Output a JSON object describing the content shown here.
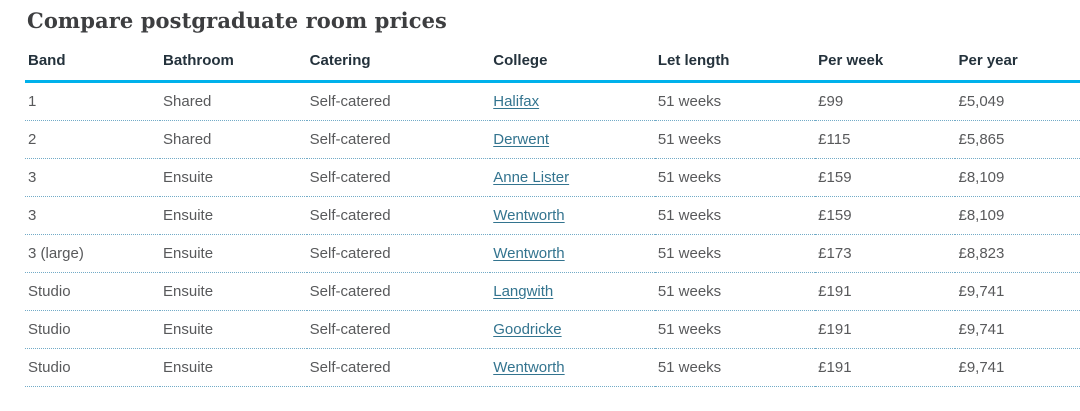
{
  "page": {
    "title": "Compare postgraduate room prices"
  },
  "table": {
    "fields": [
      "band",
      "bathroom",
      "catering",
      "college",
      "let_length",
      "per_week",
      "per_year"
    ],
    "columns": [
      "Band",
      "Bathroom",
      "Catering",
      "College",
      "Let length",
      "Per week",
      "Per year"
    ],
    "rows": [
      {
        "band": "1",
        "bathroom": "Shared",
        "catering": "Self-catered",
        "college": "Halifax",
        "let_length": "51 weeks",
        "per_week": "£99",
        "per_year": "£5,049"
      },
      {
        "band": "2",
        "bathroom": "Shared",
        "catering": "Self-catered",
        "college": "Derwent",
        "let_length": "51 weeks",
        "per_week": "£115",
        "per_year": "£5,865"
      },
      {
        "band": "3",
        "bathroom": "Ensuite",
        "catering": "Self-catered",
        "college": "Anne Lister",
        "let_length": "51 weeks",
        "per_week": "£159",
        "per_year": "£8,109"
      },
      {
        "band": "3",
        "bathroom": "Ensuite",
        "catering": "Self-catered",
        "college": "Wentworth",
        "let_length": "51 weeks",
        "per_week": "£159",
        "per_year": "£8,109"
      },
      {
        "band": "3 (large)",
        "bathroom": "Ensuite",
        "catering": "Self-catered",
        "college": "Wentworth",
        "let_length": "51 weeks",
        "per_week": "£173",
        "per_year": "£8,823"
      },
      {
        "band": "Studio",
        "bathroom": "Ensuite",
        "catering": "Self-catered",
        "college": "Langwith",
        "let_length": "51 weeks",
        "per_week": "£191",
        "per_year": "£9,741"
      },
      {
        "band": "Studio",
        "bathroom": "Ensuite",
        "catering": "Self-catered",
        "college": "Goodricke",
        "let_length": "51 weeks",
        "per_week": "£191",
        "per_year": "£9,741"
      },
      {
        "band": "Studio",
        "bathroom": "Ensuite",
        "catering": "Self-catered",
        "college": "Wentworth",
        "let_length": "51 weeks",
        "per_week": "£191",
        "per_year": "£9,741"
      }
    ],
    "column_widths_pct": [
      12.8,
      13.9,
      17.4,
      15.6,
      15.2,
      13.3,
      11.8
    ]
  },
  "colors": {
    "header_rule": "#00b1eb",
    "row_divider": "#72abc7",
    "link": "#33748f",
    "heading_text": "#3d3e40",
    "header_text": "#24323c",
    "body_text": "#58595b"
  }
}
